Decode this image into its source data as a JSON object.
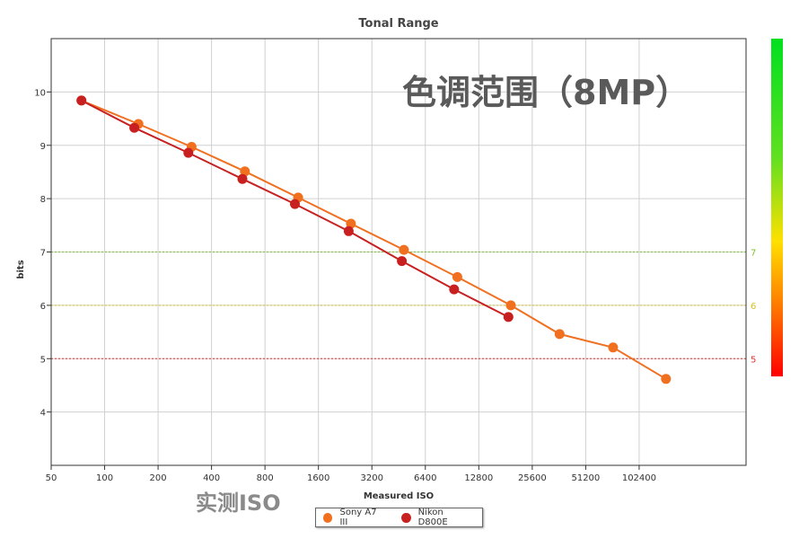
{
  "chart_data": {
    "type": "line",
    "title": "Tonal Range",
    "xlabel": "Measured ISO",
    "ylabel": "bits",
    "x_scale": "log2",
    "xlim": [
      50,
      409600
    ],
    "ylim": [
      3,
      11
    ],
    "x_ticks": [
      50,
      100,
      200,
      400,
      800,
      1600,
      3200,
      6400,
      12800,
      25600,
      51200,
      102400
    ],
    "y_ticks": [
      4,
      5,
      6,
      7,
      8,
      9,
      10
    ],
    "grid": true,
    "legend_position": "bottom-center",
    "series": [
      {
        "name": "Sony A7 III",
        "color": "#f07020",
        "x": [
          74,
          155,
          309,
          617,
          1230,
          2440,
          4850,
          9690,
          19400,
          36500,
          73000,
          145000
        ],
        "y": [
          9.84,
          9.4,
          8.97,
          8.51,
          8.02,
          7.53,
          7.04,
          6.53,
          6.0,
          5.46,
          5.21,
          4.62
        ]
      },
      {
        "name": "Nikon D800E",
        "color": "#c82020",
        "x": [
          74,
          147,
          296,
          597,
          1180,
          2370,
          4720,
          9290,
          18800
        ],
        "y": [
          9.84,
          9.33,
          8.86,
          8.37,
          7.9,
          7.39,
          6.83,
          6.3,
          5.78
        ]
      }
    ],
    "reference_lines": [
      {
        "y": 7,
        "label": "7",
        "color": "#7cc030"
      },
      {
        "y": 6,
        "label": "6",
        "color": "#d6c020"
      },
      {
        "y": 5,
        "label": "5",
        "color": "#e03030"
      }
    ]
  },
  "overlay": {
    "big_title": "色调范围（8MP）",
    "iso_note": "实测ISO"
  }
}
